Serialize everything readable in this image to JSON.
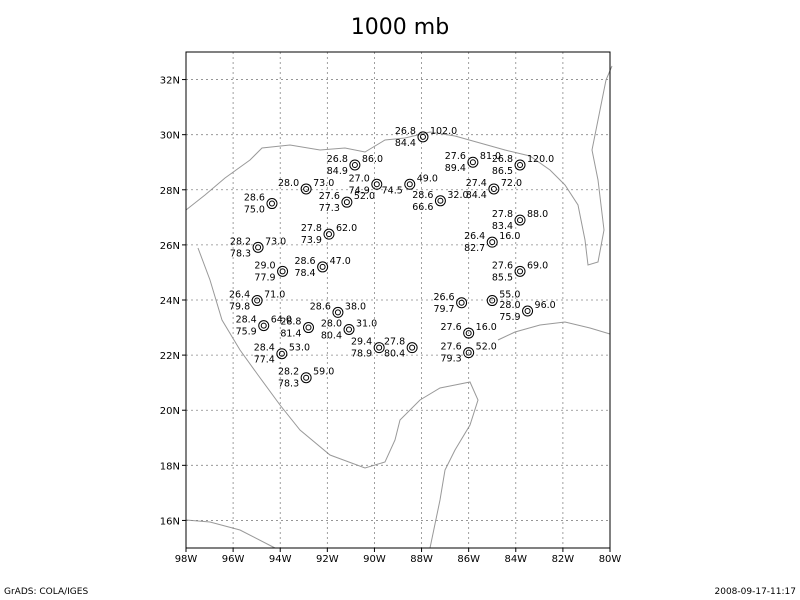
{
  "title": "1000 mb",
  "map": {
    "xlim": [
      -98,
      -80
    ],
    "ylim": [
      15,
      33
    ],
    "lon_ticks": [
      {
        "value": -98,
        "label": "98W"
      },
      {
        "value": -96,
        "label": "96W"
      },
      {
        "value": -94,
        "label": "94W"
      },
      {
        "value": -92,
        "label": "92W"
      },
      {
        "value": -90,
        "label": "90W"
      },
      {
        "value": -88,
        "label": "88W"
      },
      {
        "value": -86,
        "label": "86W"
      },
      {
        "value": -84,
        "label": "84W"
      },
      {
        "value": -82,
        "label": "82W"
      },
      {
        "value": -80,
        "label": "80W"
      }
    ],
    "lat_ticks": [
      {
        "value": 16,
        "label": "16N"
      },
      {
        "value": 18,
        "label": "18N"
      },
      {
        "value": 20,
        "label": "20N"
      },
      {
        "value": 22,
        "label": "22N"
      },
      {
        "value": 24,
        "label": "24N"
      },
      {
        "value": 26,
        "label": "26N"
      },
      {
        "value": 28,
        "label": "28N"
      },
      {
        "value": 30,
        "label": "30N"
      },
      {
        "value": 32,
        "label": "32N"
      }
    ],
    "stations": [
      {
        "lon": -87.94,
        "lat": 29.92,
        "temp": "26.8",
        "rh": "84.4",
        "height": "102.0"
      },
      {
        "lon": -90.83,
        "lat": 28.9,
        "temp": "26.8",
        "rh": "84.9",
        "height": "86.0"
      },
      {
        "lon": -85.82,
        "lat": 29.0,
        "temp": "27.6",
        "rh": "89.4",
        "height": "81.0"
      },
      {
        "lon": -83.82,
        "lat": 28.9,
        "temp": "26.8",
        "rh": "86.5",
        "height": "120.0"
      },
      {
        "lon": -92.9,
        "lat": 28.03,
        "temp": "28.0",
        "height": "73.0"
      },
      {
        "lon": -94.35,
        "lat": 27.5,
        "temp": "28.6",
        "rh": "75.0"
      },
      {
        "lon": -89.9,
        "lat": 28.2,
        "temp": "27.0",
        "rh": "74.9"
      },
      {
        "lon": -88.5,
        "lat": 28.2,
        "rh": "74.5",
        "height": "49.0"
      },
      {
        "lon": -84.93,
        "lat": 28.03,
        "temp": "27.4",
        "rh": "84.4",
        "height": "72.0"
      },
      {
        "lon": -91.17,
        "lat": 27.55,
        "temp": "27.6",
        "rh": "77.3",
        "height": "52.0"
      },
      {
        "lon": -87.2,
        "lat": 27.6,
        "temp": "28.6",
        "rh": "66.6",
        "height": "32.0"
      },
      {
        "lon": -83.82,
        "lat": 26.9,
        "temp": "27.8",
        "rh": "83.4",
        "height": "88.0"
      },
      {
        "lon": -91.93,
        "lat": 26.39,
        "temp": "27.8",
        "rh": "73.9",
        "height": "62.0"
      },
      {
        "lon": -94.94,
        "lat": 25.91,
        "temp": "28.2",
        "rh": "78.3",
        "height": "73.0"
      },
      {
        "lon": -85.0,
        "lat": 26.1,
        "temp": "26.4",
        "rh": "82.7",
        "height": "16.0"
      },
      {
        "lon": -93.9,
        "lat": 25.04,
        "temp": "29.0",
        "rh": "77.9"
      },
      {
        "lon": -92.2,
        "lat": 25.2,
        "temp": "28.6",
        "rh": "78.4",
        "height": "47.0"
      },
      {
        "lon": -83.82,
        "lat": 25.04,
        "temp": "27.6",
        "rh": "85.5",
        "height": "69.0"
      },
      {
        "lon": -94.98,
        "lat": 23.98,
        "temp": "26.4",
        "rh": "79.8",
        "height": "71.0"
      },
      {
        "lon": -86.3,
        "lat": 23.9,
        "temp": "26.6",
        "rh": "79.7"
      },
      {
        "lon": -85.0,
        "lat": 23.98,
        "height": "55.0"
      },
      {
        "lon": -83.5,
        "lat": 23.6,
        "temp": "28.0",
        "rh": "75.9",
        "height": "96.0"
      },
      {
        "lon": -91.55,
        "lat": 23.55,
        "temp": "28.6",
        "height": "38.0"
      },
      {
        "lon": -94.7,
        "lat": 23.07,
        "temp": "28.4",
        "rh": "75.9",
        "height": "64.0"
      },
      {
        "lon": -92.8,
        "lat": 23.0,
        "temp": "28.8",
        "rh": "81.4"
      },
      {
        "lon": -91.08,
        "lat": 22.93,
        "temp": "28.0",
        "rh": "80.4",
        "height": "31.0"
      },
      {
        "lon": -86.0,
        "lat": 22.8,
        "temp": "27.6",
        "height": "16.0"
      },
      {
        "lon": -89.8,
        "lat": 22.27,
        "temp": "29.4",
        "rh": "78.9"
      },
      {
        "lon": -88.4,
        "lat": 22.27,
        "temp": "27.8",
        "rh": "80.4"
      },
      {
        "lon": -86.0,
        "lat": 22.09,
        "temp": "27.6",
        "rh": "79.3",
        "height": "52.0"
      },
      {
        "lon": -93.93,
        "lat": 22.05,
        "temp": "28.4",
        "rh": "77.4",
        "height": "53.0"
      },
      {
        "lon": -92.9,
        "lat": 21.18,
        "temp": "28.2",
        "rh": "78.3",
        "height": "59.0"
      }
    ]
  },
  "footer": {
    "left": "GrADS: COLA/IGES",
    "right": "2008-09-17-11:17"
  }
}
